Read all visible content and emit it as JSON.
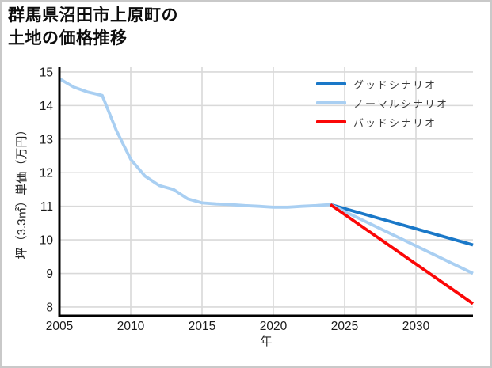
{
  "title": {
    "line1": "群馬県沼田市上原町の",
    "line2": "土地の価格推移"
  },
  "legend": {
    "items": [
      {
        "label": "グッドシナリオ",
        "color": "#1a78c8"
      },
      {
        "label": "ノーマルシナリオ",
        "color": "#a9cff2"
      },
      {
        "label": "バッドシナリオ",
        "color": "#fb0707"
      }
    ]
  },
  "colors": {
    "good_scenario": "#1a78c8",
    "normal_scenario": "#a9cff2",
    "bad_scenario": "#fb0707",
    "historical_line": "#a9cff2",
    "gridline": "#d9d9d9",
    "axis": "#000000",
    "tick_label": "#1a1a1a"
  },
  "chart_data": {
    "type": "line",
    "title": "群馬県沼田市上原町の 土地の価格推移",
    "xlabel": "年",
    "ylabel": "坪（3.3㎡）単価（万円）",
    "xlim": [
      2005,
      2034
    ],
    "ylim": [
      7.74,
      15.14
    ],
    "grid": true,
    "legend_position": "upper right",
    "xticks": [
      2005,
      2010,
      2015,
      2020,
      2025,
      2030
    ],
    "yticks": [
      8,
      9,
      10,
      11,
      12,
      13,
      14,
      15
    ],
    "series": [
      {
        "label": "",
        "role": "historical",
        "color": "#a9cff2",
        "x": [
          2005,
          2006,
          2007,
          2008,
          2009,
          2010,
          2011,
          2012,
          2013,
          2014,
          2015,
          2016,
          2017,
          2018,
          2019,
          2020,
          2021,
          2022,
          2023,
          2024
        ],
        "y": [
          14.8,
          14.55,
          14.4,
          14.3,
          13.25,
          12.4,
          11.9,
          11.62,
          11.5,
          11.22,
          11.1,
          11.07,
          11.05,
          11.02,
          11.0,
          10.97,
          10.97,
          11.0,
          11.02,
          11.05
        ]
      },
      {
        "label": "グッドシナリオ",
        "role": "forecast-good",
        "color": "#1a78c8",
        "x": [
          2024,
          2034
        ],
        "y": [
          11.05,
          9.85
        ]
      },
      {
        "label": "ノーマルシナリオ",
        "role": "forecast-normal",
        "color": "#a9cff2",
        "x": [
          2024,
          2034
        ],
        "y": [
          11.05,
          9.0
        ]
      },
      {
        "label": "バッドシナリオ",
        "role": "forecast-bad",
        "color": "#fb0707",
        "x": [
          2024,
          2034
        ],
        "y": [
          11.05,
          8.1
        ]
      }
    ]
  }
}
